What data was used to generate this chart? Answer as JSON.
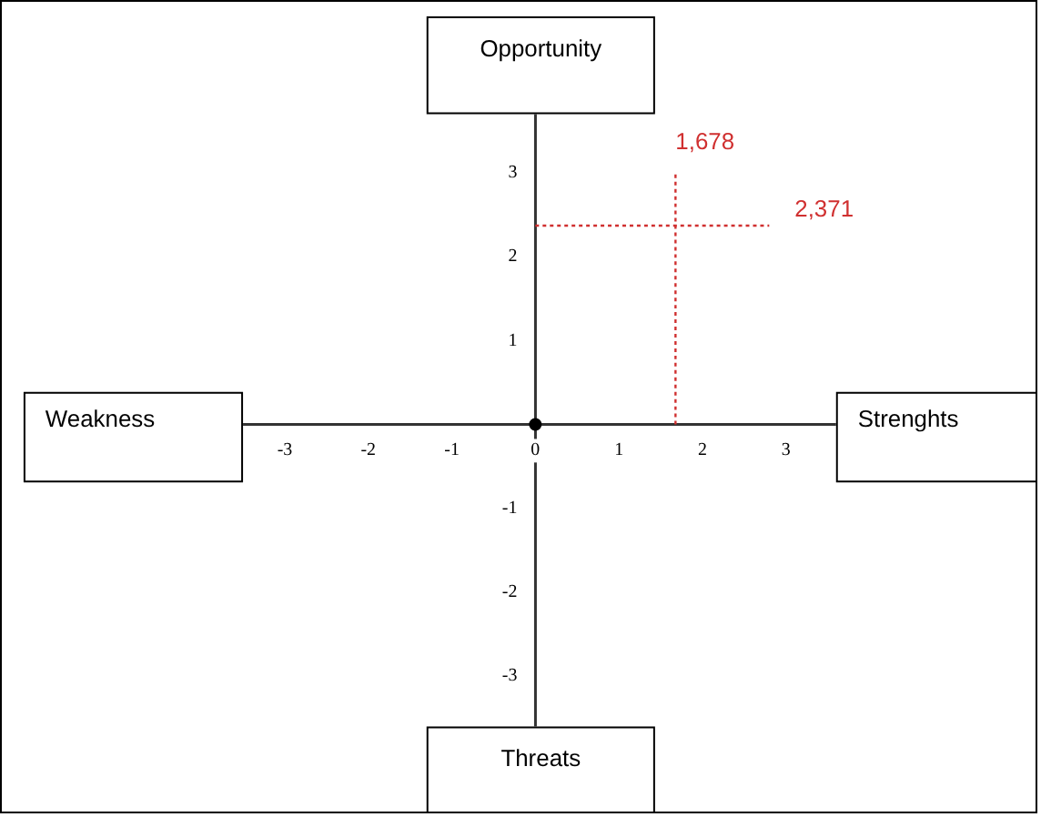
{
  "chart_data": {
    "type": "scatter",
    "x": [
      0
    ],
    "values": [
      0
    ],
    "color": "#000000",
    "marker": "circle",
    "xlim": [
      -3.5,
      3.6
    ],
    "ylim": [
      -3.6,
      3.7
    ],
    "xticks": [
      -3,
      -2,
      -1,
      {
        "value": 0,
        "label": "0"
      },
      1,
      2,
      3
    ],
    "yticks": [
      -3,
      -2,
      -1,
      1,
      2,
      3
    ],
    "grid": false,
    "legend": false,
    "ref_lines": [
      {
        "axis": "x",
        "value": 1.678,
        "label": "1,678",
        "color": "#d03030",
        "line_style": "dotted"
      },
      {
        "axis": "y",
        "value": 2.371,
        "label": "2,371",
        "color": "#d03030",
        "line_style": "dotted"
      }
    ],
    "annotations": [
      "Opportunity",
      "Weakness",
      "Strenghts",
      "Threats"
    ]
  }
}
